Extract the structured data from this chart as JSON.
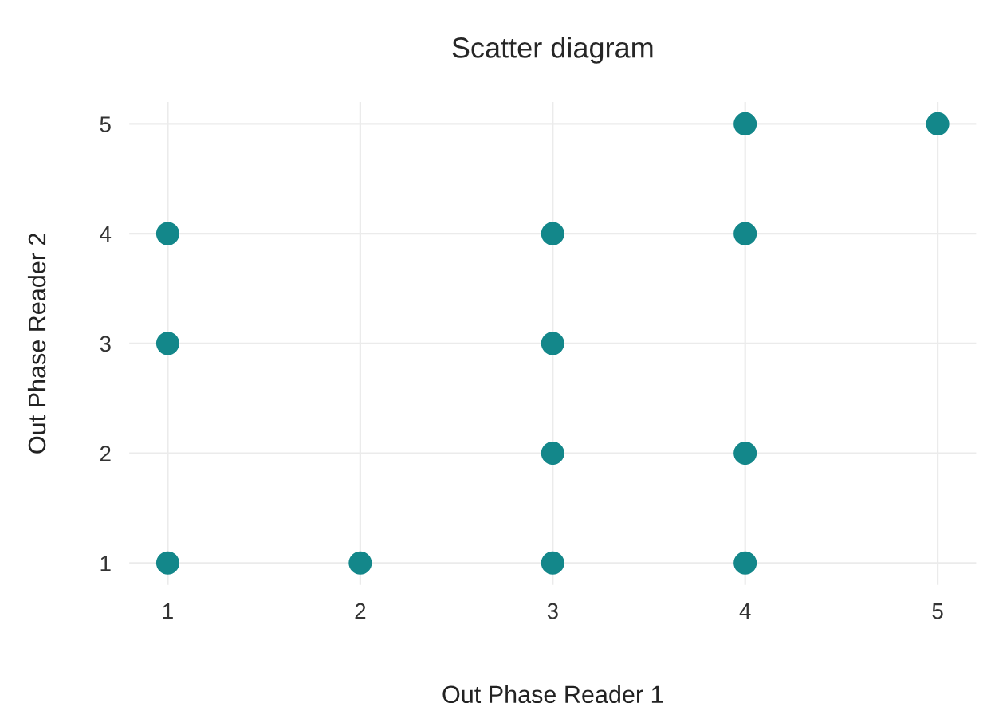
{
  "chart_data": {
    "type": "scatter",
    "title": "Scatter diagram",
    "xlabel": "Out Phase Reader 1",
    "ylabel": "Out Phase Reader 2",
    "x": [
      1,
      1,
      1,
      2,
      3,
      3,
      3,
      3,
      4,
      4,
      4,
      4,
      5
    ],
    "series": [
      {
        "color": "#13878a",
        "values": [
          4,
          3,
          1,
          1,
          4,
          3,
          2,
          1,
          5,
          4,
          2,
          1,
          5
        ]
      }
    ],
    "xlim": [
      0.8,
      5.2
    ],
    "ylim": [
      0.8,
      5.2
    ],
    "xticks": [
      1,
      2,
      3,
      4,
      5
    ],
    "yticks": [
      1,
      2,
      3,
      4,
      5
    ],
    "grid": true,
    "marker": "circle"
  }
}
